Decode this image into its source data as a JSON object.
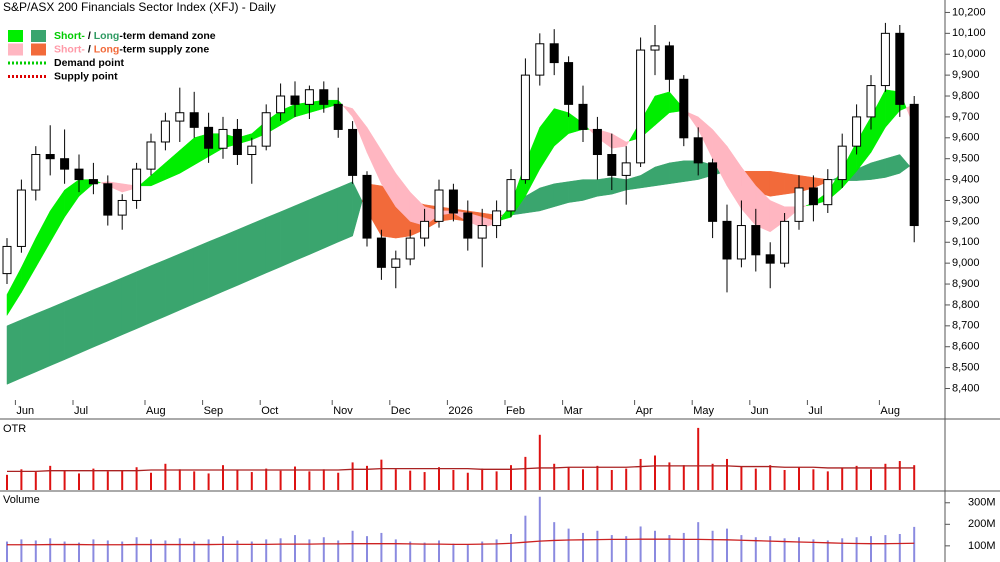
{
  "chart_data": {
    "type": "candlestick",
    "title": "S&P/ASX 200 Financials Sector Index (XFJ) - Daily",
    "legend": [
      {
        "swatches": [
          "#00ee00",
          "#3aa56e"
        ],
        "parts": [
          {
            "text": "Short-",
            "color": "#00cc00"
          },
          {
            "text": " / "
          },
          {
            "text": "Long",
            "color": "#2e9a62"
          },
          {
            "text": "-term demand zone"
          }
        ]
      },
      {
        "swatches": [
          "#ffb6c1",
          "#f26a3a"
        ],
        "parts": [
          {
            "text": "Short-",
            "color": "#ff9aa8"
          },
          {
            "text": " / "
          },
          {
            "text": "Long",
            "color": "#f26a3a"
          },
          {
            "text": "-term supply zone"
          }
        ]
      },
      {
        "dotted": "#00cc00",
        "parts": [
          {
            "text": "Demand point"
          }
        ]
      },
      {
        "dotted": "#dd0000",
        "parts": [
          {
            "text": "Supply point"
          }
        ]
      }
    ],
    "categories": [
      null,
      "Jun",
      null,
      null,
      null,
      "Jul",
      null,
      null,
      null,
      null,
      "Aug",
      null,
      null,
      null,
      "Sep",
      null,
      null,
      null,
      "Oct",
      null,
      null,
      null,
      null,
      "Nov",
      null,
      null,
      null,
      "Dec",
      null,
      null,
      null,
      "2026",
      null,
      null,
      null,
      "Feb",
      null,
      null,
      null,
      "Mar",
      null,
      null,
      null,
      null,
      "Apr",
      null,
      null,
      null,
      "May",
      null,
      null,
      null,
      "Jun",
      null,
      null,
      null,
      "Jul",
      null,
      null,
      null,
      null,
      "Aug",
      null,
      null
    ],
    "open": [
      8950,
      9080,
      9350,
      9520,
      9500,
      9450,
      9400,
      9380,
      9230,
      9300,
      9450,
      9580,
      9680,
      9720,
      9650,
      9550,
      9640,
      9520,
      9560,
      9720,
      9800,
      9760,
      9830,
      9760,
      9640,
      9420,
      9120,
      8980,
      9020,
      9120,
      9200,
      9350,
      9240,
      9120,
      9180,
      9250,
      9400,
      9900,
      10050,
      9960,
      9760,
      9640,
      9520,
      9420,
      9480,
      10020,
      10040,
      9880,
      9600,
      9480,
      9200,
      9020,
      9180,
      9040,
      9000,
      9200,
      9360,
      9280,
      9400,
      9560,
      9700,
      9850,
      10100,
      9760
    ],
    "high": [
      9120,
      9400,
      9560,
      9660,
      9640,
      9520,
      9480,
      9420,
      9330,
      9480,
      9620,
      9720,
      9840,
      9820,
      9720,
      9700,
      9690,
      9600,
      9760,
      9860,
      9870,
      9850,
      9870,
      9840,
      9680,
      9440,
      9160,
      9060,
      9160,
      9260,
      9400,
      9380,
      9300,
      9260,
      9300,
      9450,
      9980,
      10100,
      10120,
      9990,
      9850,
      9700,
      9620,
      9560,
      10080,
      10140,
      10060,
      9900,
      9650,
      9500,
      9280,
      9300,
      9260,
      9100,
      9240,
      9420,
      9420,
      9450,
      9620,
      9760,
      9900,
      10150,
      10140,
      9800
    ],
    "low": [
      8900,
      9050,
      9300,
      9420,
      9380,
      9340,
      9330,
      9180,
      9160,
      9260,
      9420,
      9540,
      9580,
      9600,
      9480,
      9500,
      9470,
      9380,
      9540,
      9680,
      9700,
      9690,
      9720,
      9600,
      9380,
      9080,
      8920,
      8880,
      8990,
      9080,
      9170,
      9200,
      9060,
      8980,
      9120,
      9220,
      9380,
      9850,
      9900,
      9700,
      9580,
      9400,
      9350,
      9280,
      9460,
      9900,
      9820,
      9560,
      9420,
      9120,
      8860,
      8980,
      8960,
      8880,
      8980,
      9160,
      9200,
      9240,
      9360,
      9520,
      9640,
      9820,
      9700,
      9100
    ],
    "close": [
      9080,
      9350,
      9520,
      9500,
      9450,
      9400,
      9380,
      9230,
      9300,
      9450,
      9580,
      9680,
      9720,
      9650,
      9550,
      9640,
      9520,
      9560,
      9720,
      9800,
      9760,
      9830,
      9760,
      9640,
      9420,
      9120,
      8980,
      9020,
      9120,
      9200,
      9350,
      9240,
      9120,
      9180,
      9250,
      9400,
      9900,
      10050,
      9960,
      9760,
      9640,
      9520,
      9420,
      9480,
      10020,
      10040,
      9880,
      9600,
      9480,
      9200,
      9020,
      9180,
      9040,
      9000,
      9200,
      9360,
      9280,
      9400,
      9560,
      9700,
      9850,
      10100,
      9760,
      9180
    ],
    "ylim": [
      8345,
      10250
    ],
    "yticks": [
      {
        "value": 8400,
        "label": "8,400"
      },
      {
        "value": 8500,
        "label": "8,500"
      },
      {
        "value": 8600,
        "label": "8,600"
      },
      {
        "value": 8700,
        "label": "8,700"
      },
      {
        "value": 8800,
        "label": "8,800"
      },
      {
        "value": 8900,
        "label": "8,900"
      },
      {
        "value": 9000,
        "label": "9,000"
      },
      {
        "value": 9100,
        "label": "9,100"
      },
      {
        "value": 9200,
        "label": "9,200"
      },
      {
        "value": 9300,
        "label": "9,300"
      },
      {
        "value": 9400,
        "label": "9,400"
      },
      {
        "value": 9500,
        "label": "9,500"
      },
      {
        "value": 9600,
        "label": "9,600"
      },
      {
        "value": 9700,
        "label": "9,700"
      },
      {
        "value": 9800,
        "label": "9,800"
      },
      {
        "value": 9900,
        "label": "9,900"
      },
      {
        "value": 10000,
        "label": "10,000"
      },
      {
        "value": 10100,
        "label": "10,100"
      },
      {
        "value": 10200,
        "label": "10,200"
      }
    ],
    "zones": [
      {
        "demand_color": "#3aa56e",
        "supply_color": "#f26a3a",
        "fast": [
          8700,
          8729,
          8758,
          8786,
          8815,
          8844,
          8873,
          8901,
          8930,
          8959,
          8988,
          9016,
          9045,
          9074,
          9103,
          9131,
          9160,
          9189,
          9218,
          9246,
          9275,
          9304,
          9333,
          9361,
          9390,
          9250,
          9130,
          9120,
          9130,
          9160,
          9200,
          9210,
          9200,
          9190,
          9210,
          9260,
          9320,
          9360,
          9380,
          9390,
          9400,
          9400,
          9410,
          9400,
          9420,
          9460,
          9480,
          9490,
          9490,
          9470,
          9420,
          9370,
          9340,
          9320,
          9330,
          9340,
          9360,
          9390,
          9420,
          9450,
          9480,
          9500,
          9520,
          9440
        ],
        "slow": [
          8420,
          8450,
          8479,
          8509,
          8538,
          8568,
          8598,
          8627,
          8657,
          8686,
          8716,
          8745,
          8775,
          8805,
          8834,
          8864,
          8893,
          8923,
          8953,
          8982,
          9012,
          9041,
          9071,
          9101,
          9130,
          9380,
          9370,
          9340,
          9300,
          9280,
          9270,
          9260,
          9250,
          9240,
          9230,
          9230,
          9240,
          9250,
          9270,
          9290,
          9300,
          9320,
          9330,
          9350,
          9360,
          9370,
          9380,
          9390,
          9400,
          9420,
          9440,
          9440,
          9440,
          9440,
          9430,
          9420,
          9410,
          9400,
          9395,
          9395,
          9400,
          9410,
          9430,
          9480
        ]
      },
      {
        "demand_color": "#00ee00",
        "supply_color": "#ffb6c1",
        "fast": [
          8850,
          8980,
          9120,
          9250,
          9350,
          9400,
          9400,
          9370,
          9340,
          9360,
          9420,
          9480,
          9540,
          9600,
          9620,
          9620,
          9600,
          9620,
          9680,
          9730,
          9760,
          9770,
          9780,
          9780,
          9700,
          9530,
          9380,
          9270,
          9200,
          9180,
          9230,
          9240,
          9200,
          9170,
          9190,
          9280,
          9480,
          9650,
          9740,
          9720,
          9670,
          9600,
          9550,
          9560,
          9680,
          9800,
          9820,
          9740,
          9640,
          9500,
          9370,
          9260,
          9180,
          9150,
          9200,
          9260,
          9290,
          9340,
          9450,
          9580,
          9700,
          9830,
          9820,
          9650
        ],
        "slow": [
          8750,
          8860,
          8980,
          9100,
          9220,
          9320,
          9380,
          9390,
          9380,
          9370,
          9370,
          9400,
          9430,
          9470,
          9510,
          9550,
          9570,
          9590,
          9620,
          9660,
          9700,
          9720,
          9740,
          9760,
          9740,
          9650,
          9540,
          9430,
          9340,
          9270,
          9250,
          9250,
          9240,
          9220,
          9200,
          9220,
          9320,
          9450,
          9560,
          9620,
          9640,
          9640,
          9620,
          9580,
          9600,
          9660,
          9720,
          9730,
          9700,
          9640,
          9560,
          9460,
          9370,
          9300,
          9270,
          9270,
          9280,
          9300,
          9360,
          9440,
          9530,
          9650,
          9730,
          9760
        ]
      }
    ],
    "otr": {
      "label": "OTR",
      "color": "#dd1111",
      "average_color": "#aa2222",
      "ylim": [
        0,
        100
      ],
      "values": [
        22,
        30,
        26,
        35,
        28,
        24,
        31,
        27,
        29,
        33,
        25,
        38,
        30,
        27,
        24,
        36,
        29,
        26,
        31,
        28,
        34,
        27,
        30,
        25,
        40,
        35,
        44,
        30,
        28,
        26,
        33,
        29,
        25,
        31,
        27,
        36,
        48,
        80,
        38,
        33,
        30,
        35,
        29,
        31,
        45,
        50,
        40,
        36,
        90,
        38,
        45,
        34,
        31,
        36,
        29,
        33,
        30,
        27,
        32,
        35,
        30,
        38,
        42,
        36
      ],
      "average": [
        27,
        27,
        27,
        28,
        28,
        28,
        28,
        28,
        28,
        28,
        29,
        29,
        29,
        29,
        29,
        29,
        29,
        29,
        29,
        29,
        29,
        29,
        29,
        29,
        30,
        30,
        31,
        31,
        31,
        31,
        31,
        31,
        31,
        30,
        30,
        30,
        31,
        32,
        32,
        33,
        33,
        33,
        33,
        33,
        34,
        35,
        35,
        35,
        35,
        35,
        35,
        34,
        34,
        34,
        33,
        33,
        33,
        32,
        32,
        32,
        32,
        32,
        32,
        32
      ]
    },
    "volume": {
      "label": "Volume",
      "color": "#8a8ae0",
      "average_color": "#cc2222",
      "ylim": [
        25000000,
        350000000
      ],
      "yticks": [
        {
          "value": 100000000,
          "label": "100M"
        },
        {
          "value": 200000000,
          "label": "200M"
        },
        {
          "value": 300000000,
          "label": "300M"
        }
      ],
      "values": [
        120000000.0,
        130000000.0,
        125000000.0,
        135000000.0,
        120000000.0,
        115000000.0,
        130000000.0,
        125000000.0,
        120000000.0,
        140000000.0,
        130000000.0,
        125000000.0,
        135000000.0,
        120000000.0,
        130000000.0,
        145000000.0,
        125000000.0,
        120000000.0,
        130000000.0,
        135000000.0,
        150000000.0,
        130000000.0,
        140000000.0,
        125000000.0,
        170000000.0,
        145000000.0,
        160000000.0,
        130000000.0,
        120000000.0,
        115000000.0,
        125000000.0,
        110000000.0,
        105000000.0,
        120000000.0,
        130000000.0,
        155000000.0,
        240000000.0,
        328000000.0,
        210000000.0,
        180000000.0,
        160000000.0,
        170000000.0,
        150000000.0,
        145000000.0,
        190000000.0,
        170000000.0,
        150000000.0,
        160000000.0,
        210000000.0,
        170000000.0,
        180000000.0,
        150000000.0,
        140000000.0,
        145000000.0,
        135000000.0,
        140000000.0,
        130000000.0,
        125000000.0,
        135000000.0,
        140000000.0,
        145000000.0,
        150000000.0,
        155000000.0,
        188000000.0
      ],
      "average": [
        105000000.0,
        105000000.0,
        105000000.0,
        106000000.0,
        106000000.0,
        106000000.0,
        105000000.0,
        105000000.0,
        105000000.0,
        106000000.0,
        106000000.0,
        106000000.0,
        106000000.0,
        106000000.0,
        106000000.0,
        107000000.0,
        107000000.0,
        107000000.0,
        107000000.0,
        108000000.0,
        108000000.0,
        108000000.0,
        109000000.0,
        109000000.0,
        110000000.0,
        110000000.0,
        110000000.0,
        110000000.0,
        109000000.0,
        108000000.0,
        108000000.0,
        107000000.0,
        107000000.0,
        108000000.0,
        109000000.0,
        112000000.0,
        117000000.0,
        122000000.0,
        125000000.0,
        127000000.0,
        128000000.0,
        129000000.0,
        130000000.0,
        130000000.0,
        131000000.0,
        131000000.0,
        131000000.0,
        130000000.0,
        130000000.0,
        129000000.0,
        128000000.0,
        126000000.0,
        124000000.0,
        122000000.0,
        120000000.0,
        118000000.0,
        116000000.0,
        114000000.0,
        112000000.0,
        111000000.0,
        110000000.0,
        110000000.0,
        111000000.0,
        112000000.0
      ]
    }
  }
}
